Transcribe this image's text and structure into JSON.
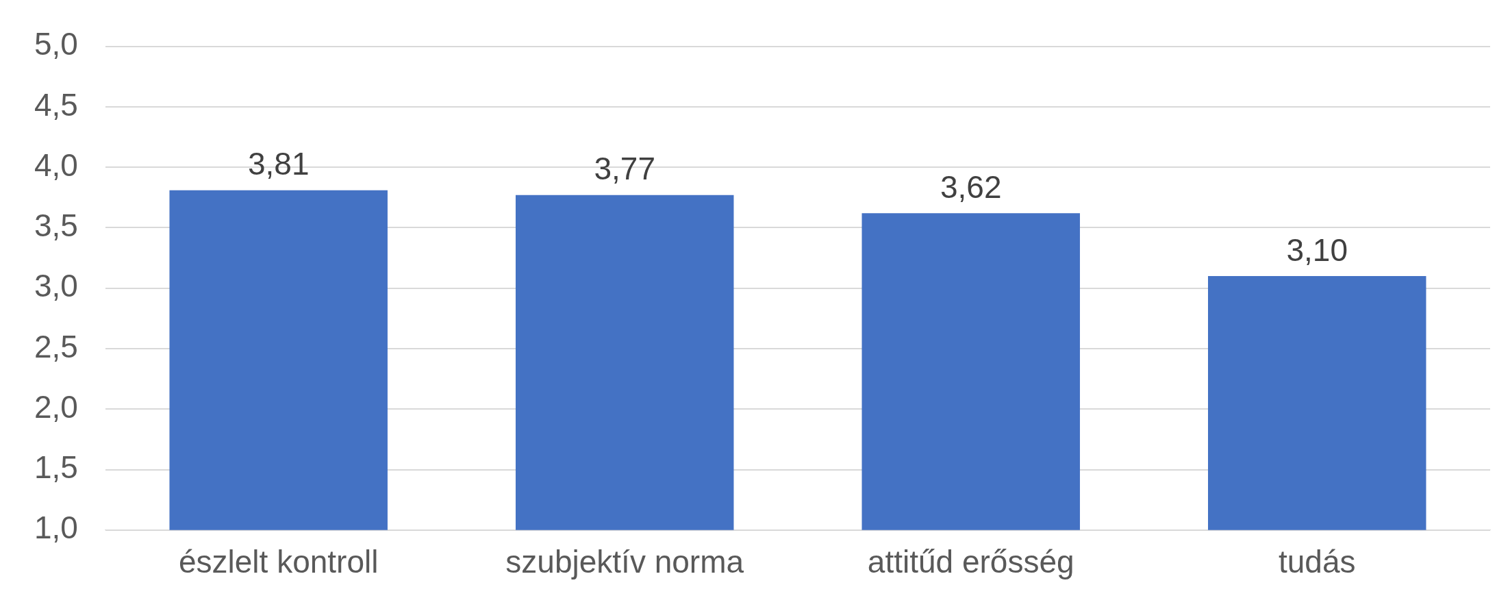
{
  "chart_data": {
    "type": "bar",
    "categories": [
      "észlelt kontroll",
      "szubjektív norma",
      "attitűd erősség",
      "tudás"
    ],
    "values": [
      3.81,
      3.77,
      3.62,
      3.1
    ],
    "color": "#4472c4",
    "value_labels": [
      "3,81",
      "3,77",
      "3,62",
      "3,10"
    ],
    "ylim": [
      1,
      5
    ],
    "yticks": [
      {
        "value": 1,
        "label": "1,0"
      },
      {
        "value": 1.5,
        "label": "1,5"
      },
      {
        "value": 2,
        "label": "2,0"
      },
      {
        "value": 2.5,
        "label": "2,5"
      },
      {
        "value": 3,
        "label": "3,0"
      },
      {
        "value": 3.5,
        "label": "3,5"
      },
      {
        "value": 4,
        "label": "4,0"
      },
      {
        "value": 4.5,
        "label": "4,5"
      },
      {
        "value": 5,
        "label": "5,0"
      }
    ],
    "grid": "y",
    "legend": false
  }
}
